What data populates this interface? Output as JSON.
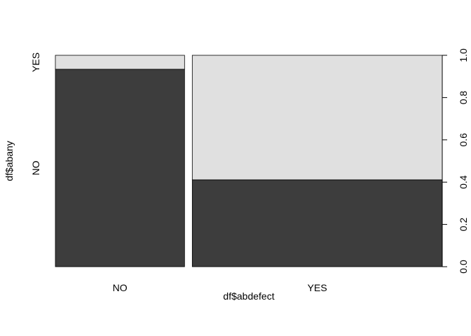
{
  "chart_data": {
    "type": "spineplot",
    "title": "",
    "xlabel": "df$abdefect",
    "ylabel": "df$abany",
    "x_categories": [
      "NO",
      "YES"
    ],
    "x_proportions": [
      0.3407,
      0.6593
    ],
    "y_categories": [
      "NO",
      "YES"
    ],
    "series": [
      {
        "name": "NO",
        "values": [
          0.934,
          0.411
        ]
      },
      {
        "name": "YES",
        "values": [
          0.066,
          0.589
        ]
      }
    ],
    "y_axis_ticks": [
      "0.0",
      "0.2",
      "0.4",
      "0.6",
      "0.8",
      "1.0"
    ],
    "ylim": [
      0,
      1
    ],
    "colors": {
      "NO": "#3d3d3d",
      "YES": "#e0e0e0",
      "border": "#000000"
    },
    "grid": false,
    "legend": "none"
  }
}
